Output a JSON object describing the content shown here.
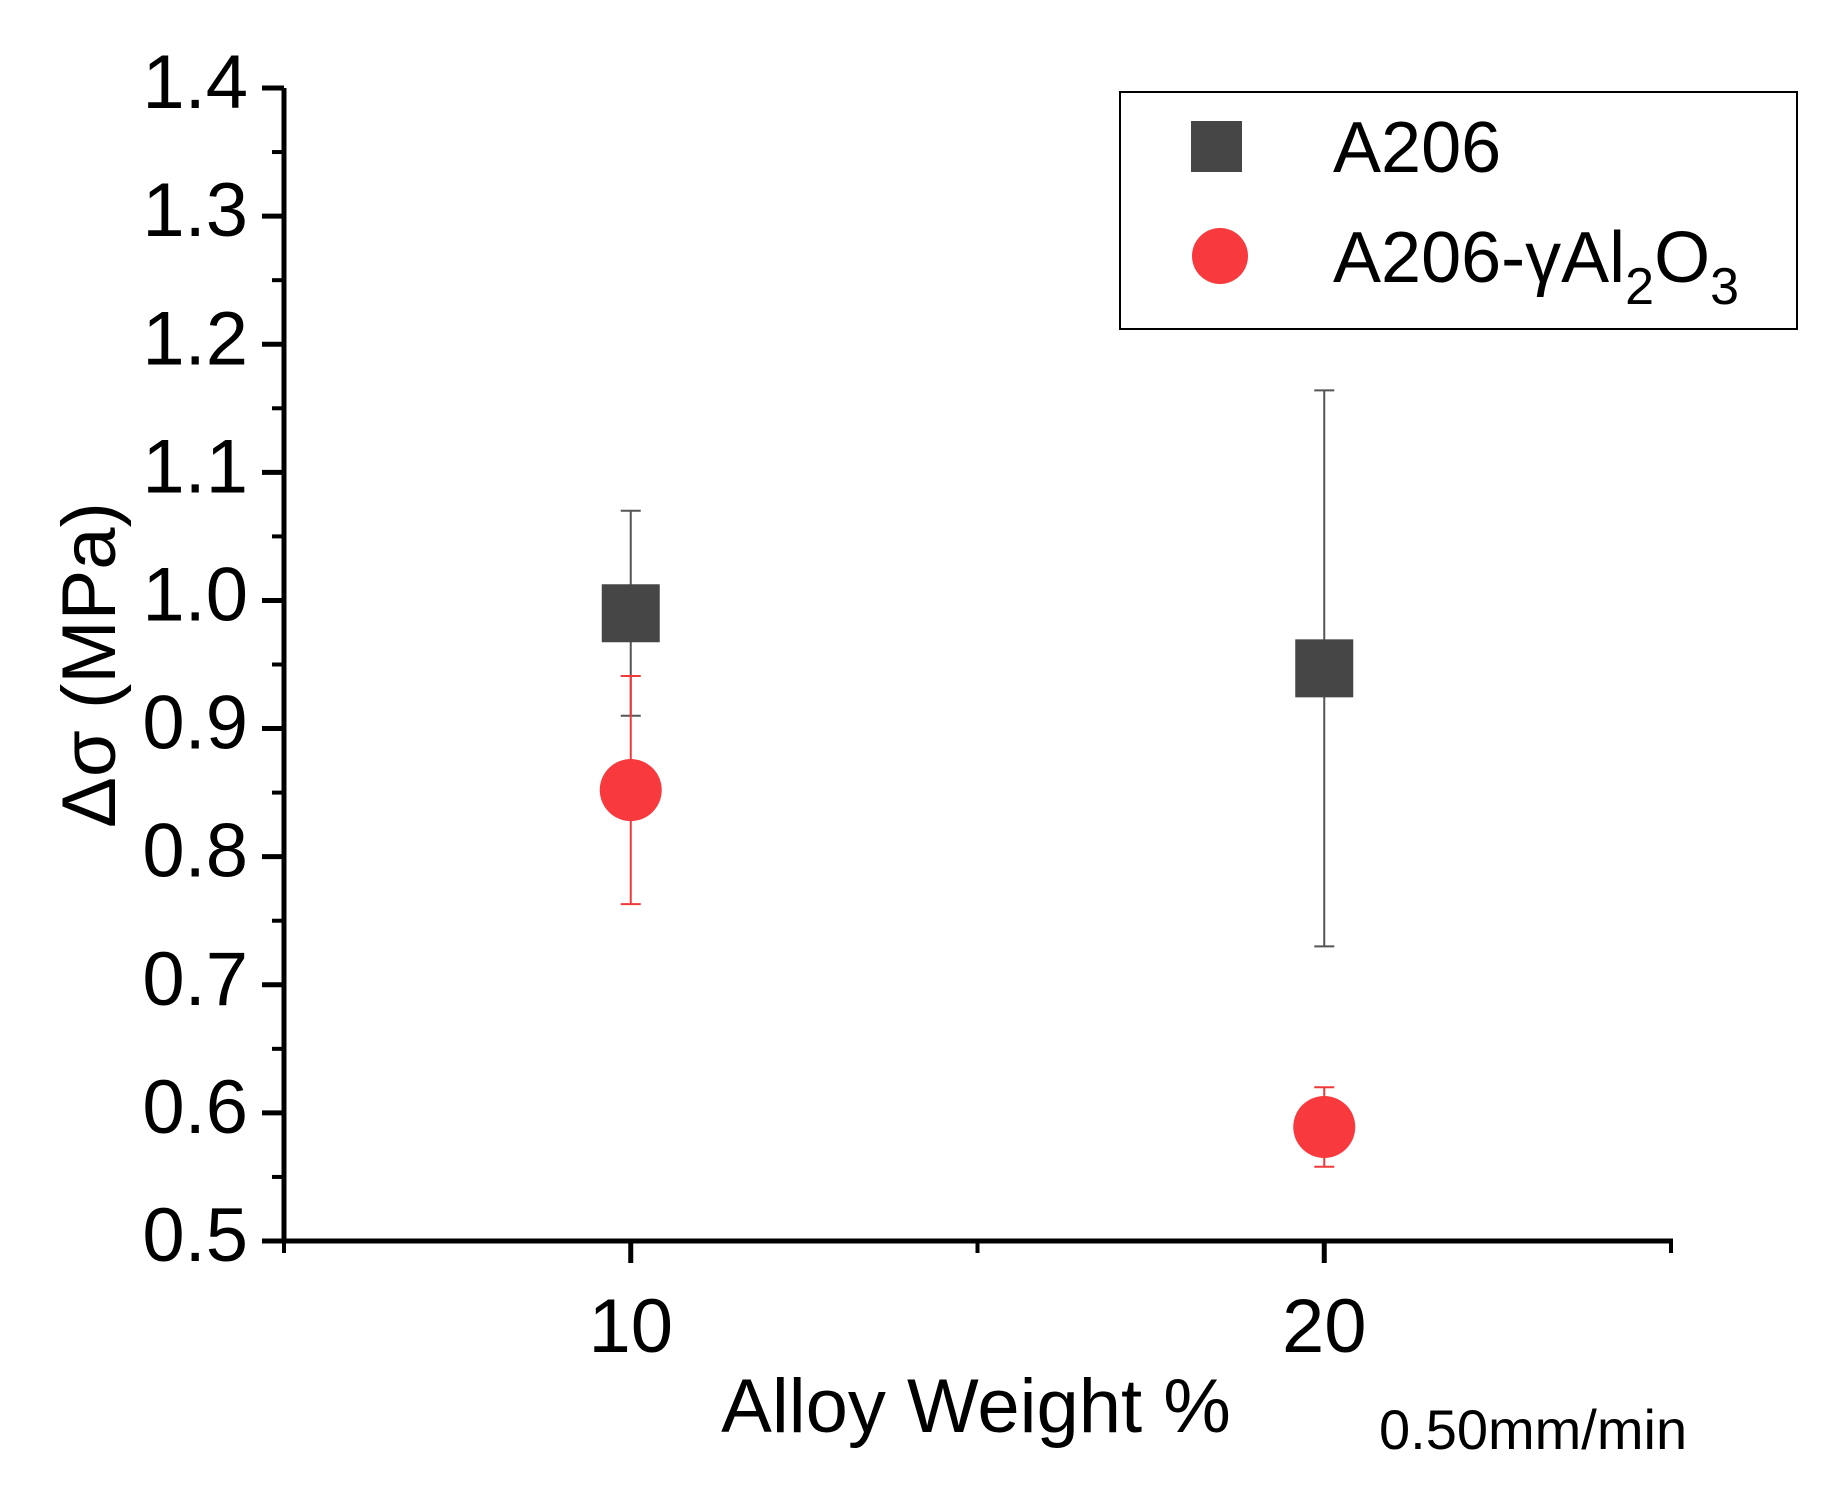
{
  "chart_data": {
    "type": "scatter",
    "title": "",
    "xlabel": "Alloy Weight %",
    "ylabel": "Δσ (MPa)",
    "xlim": [
      5,
      25
    ],
    "ylim": [
      0.5,
      1.4
    ],
    "x_ticks": [
      10,
      20
    ],
    "x_tick_labels": [
      "10",
      "20"
    ],
    "y_ticks": [
      0.5,
      0.6,
      0.7,
      0.8,
      0.9,
      1.0,
      1.1,
      1.2,
      1.3,
      1.4
    ],
    "y_tick_labels": [
      "0.5",
      "0.6",
      "0.7",
      "0.8",
      "0.9",
      "1.0",
      "1.1",
      "1.2",
      "1.3",
      "1.4"
    ],
    "grid": false,
    "legend_position": "top-right",
    "annotation": "0.50mm/min",
    "series": [
      {
        "name": "A206",
        "marker": "square",
        "color": "#464646",
        "error_color": "#555555",
        "x": [
          10,
          20
        ],
        "y": [
          0.99,
          0.947
        ],
        "error": [
          0.08,
          0.217
        ]
      },
      {
        "name": "A206-γAl2O3",
        "legend_parts": {
          "base": "A206-γAl",
          "sub1": "2",
          "mid": "O",
          "sub2": "3"
        },
        "marker": "circle",
        "color": "#f8393d",
        "error_color": "#f03a3a",
        "x": [
          10,
          20
        ],
        "y": [
          0.852,
          0.589
        ],
        "error": [
          0.089,
          0.031
        ]
      }
    ]
  }
}
